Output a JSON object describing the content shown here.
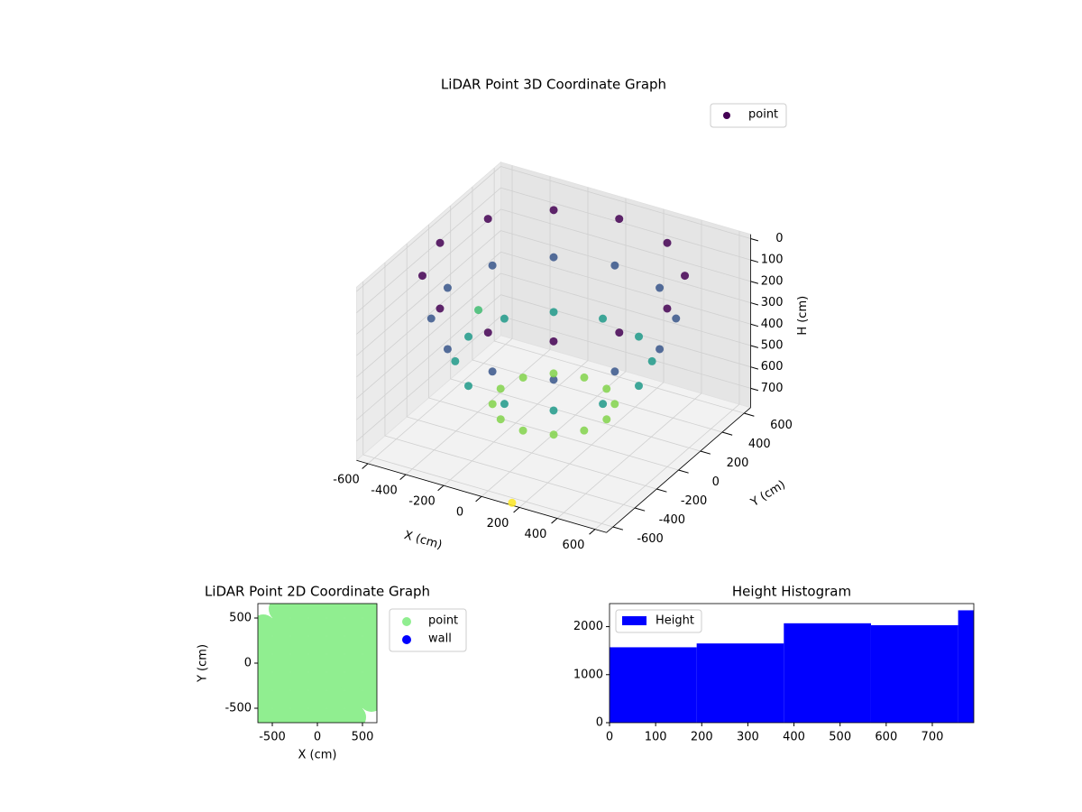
{
  "chart_data": [
    {
      "type": "scatter3d",
      "title": "LiDAR Point 3D Coordinate Graph",
      "xlabel": "X (cm)",
      "ylabel": "Y (cm)",
      "zlabel": "H (cm)",
      "xlim": [
        -660,
        660
      ],
      "ylim": [
        -660,
        660
      ],
      "zlim": [
        790,
        -20
      ],
      "xticks": [
        -600,
        -400,
        -200,
        0,
        200,
        400,
        600
      ],
      "yticks": [
        -600,
        -400,
        -200,
        0,
        200,
        400,
        600
      ],
      "zticks": [
        0,
        100,
        200,
        300,
        400,
        500,
        600,
        700
      ],
      "colormap": "viridis",
      "legend": "upper right",
      "grid": true,
      "series": [
        {
          "name": "point",
          "color": "#440154",
          "x": [
            600,
            520,
            300,
            0,
            -300,
            -520,
            -600,
            -520,
            -300,
            0,
            300,
            520,
            560,
            485,
            280,
            0,
            -280,
            -485,
            -560,
            -485,
            -280,
            0,
            280,
            485,
            450,
            390,
            225,
            0,
            -225,
            -390,
            -450,
            -390,
            -225,
            0,
            225,
            390,
            280,
            242,
            140,
            0,
            -140,
            -242,
            -280,
            -242,
            -140,
            0,
            140,
            242,
            -640,
            150
          ],
          "y": [
            0,
            300,
            520,
            600,
            520,
            300,
            0,
            -300,
            -520,
            -600,
            -520,
            -300,
            0,
            280,
            485,
            560,
            485,
            280,
            0,
            -280,
            -485,
            -560,
            -485,
            -280,
            0,
            225,
            390,
            450,
            390,
            225,
            0,
            -225,
            -390,
            -450,
            -390,
            -225,
            0,
            140,
            242,
            280,
            242,
            140,
            0,
            -140,
            -242,
            -280,
            -242,
            -140,
            420,
            -640
          ],
          "z": [
            50,
            50,
            50,
            50,
            50,
            50,
            50,
            50,
            50,
            50,
            50,
            50,
            250,
            250,
            250,
            250,
            250,
            250,
            250,
            250,
            250,
            250,
            250,
            250,
            450,
            450,
            450,
            450,
            450,
            450,
            450,
            450,
            450,
            450,
            450,
            450,
            650,
            650,
            650,
            650,
            650,
            650,
            650,
            650,
            650,
            650,
            650,
            650,
            560,
            790
          ]
        }
      ]
    },
    {
      "type": "scatter",
      "title": "LiDAR Point 2D Coordinate Graph",
      "xlabel": "X (cm)",
      "ylabel": "Y (cm)",
      "xlim": [
        -660,
        660
      ],
      "ylim": [
        -660,
        660
      ],
      "xticks": [
        -500,
        0,
        500
      ],
      "yticks": [
        -500,
        0,
        500
      ],
      "legend": "outside right",
      "series": [
        {
          "name": "point",
          "color": "#90ee90",
          "x": [
            -400,
            -200,
            0,
            200,
            400,
            600,
            -600,
            -400,
            -200,
            0,
            200,
            400,
            600,
            -600,
            -400,
            -200,
            0,
            200,
            400,
            600,
            -600,
            -400,
            -200,
            0,
            200,
            400,
            600,
            -600,
            -400,
            -200,
            0,
            200,
            400,
            600,
            -600,
            -400,
            -200,
            0,
            200,
            400,
            600,
            -600,
            -400,
            -200,
            0,
            200,
            400
          ],
          "y": [
            600,
            600,
            600,
            600,
            600,
            600,
            400,
            400,
            400,
            400,
            400,
            400,
            400,
            200,
            200,
            200,
            200,
            200,
            200,
            200,
            0,
            0,
            0,
            0,
            0,
            0,
            0,
            -200,
            -200,
            -200,
            -200,
            -200,
            -200,
            -200,
            -400,
            -400,
            -400,
            -400,
            -400,
            -400,
            -400,
            -600,
            -600,
            -600,
            -600,
            -600,
            -600
          ]
        },
        {
          "name": "wall",
          "color": "#0000ff",
          "x": [],
          "y": []
        }
      ]
    },
    {
      "type": "histogram",
      "title": "Height Histogram",
      "bins": [
        0,
        189,
        378,
        567,
        756,
        790
      ],
      "series": [
        {
          "name": "Height",
          "color": "#0000ff",
          "values": [
            1570,
            1650,
            2070,
            2030,
            2340
          ]
        }
      ],
      "xlim": [
        0,
        790
      ],
      "ylim": [
        0,
        2480
      ],
      "xticks": [
        0,
        100,
        200,
        300,
        400,
        500,
        600,
        700
      ],
      "yticks": [
        0,
        1000,
        2000
      ],
      "legend": "upper left"
    }
  ]
}
